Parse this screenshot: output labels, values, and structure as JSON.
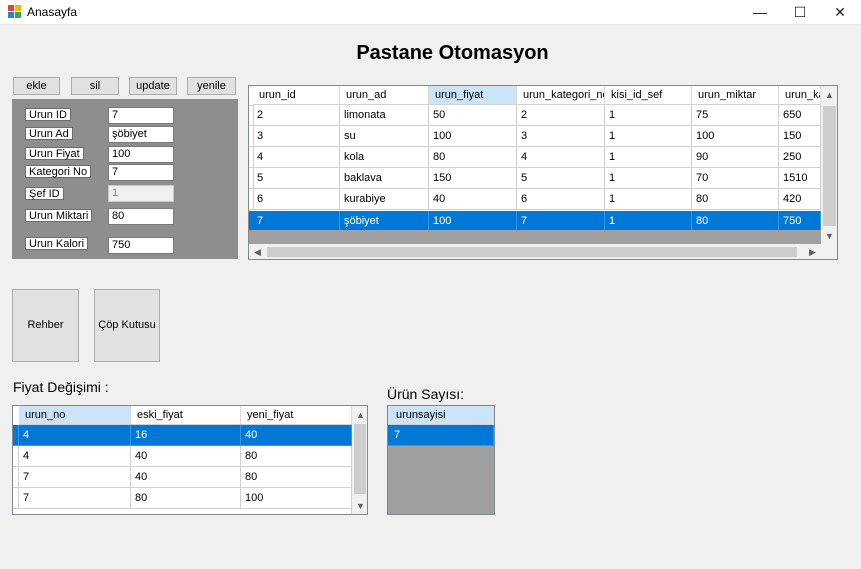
{
  "window": {
    "title": "Anasayfa",
    "minimize": "—",
    "maximize": "☐",
    "close": "✕"
  },
  "main_title": "Pastane Otomasyon",
  "toolbar": {
    "ekle": "ekle",
    "sil": "sil",
    "update": "update",
    "yenile": "yenile"
  },
  "form": {
    "urun_id_label": "Urun ID",
    "urun_id_value": "7",
    "urun_ad_label": "Urun Ad",
    "urun_ad_value": "şöbiyet",
    "urun_fiyat_label": "Urun Fiyat",
    "urun_fiyat_value": "100",
    "kategori_no_label": "Kategori No",
    "kategori_no_value": "7",
    "sef_id_label": "Şef ID",
    "sef_id_value": "1",
    "urun_miktari_label": "Urun Miktari",
    "urun_miktari_value": "80",
    "urun_kalori_label": "Urun Kalori",
    "urun_kalori_value": "750"
  },
  "products_grid": {
    "columns": [
      "urun_id",
      "urun_ad",
      "urun_fiyat",
      "urun_kategori_no",
      "kisi_id_sef",
      "urun_miktar",
      "urun_kalo"
    ],
    "rows": [
      [
        "2",
        "limonata",
        "50",
        "2",
        "1",
        "75",
        "650"
      ],
      [
        "3",
        "su",
        "100",
        "3",
        "1",
        "100",
        "150"
      ],
      [
        "4",
        "kola",
        "80",
        "4",
        "1",
        "90",
        "250"
      ],
      [
        "5",
        "baklava",
        "150",
        "5",
        "1",
        "70",
        "1510"
      ],
      [
        "6",
        "kurabiye",
        "40",
        "6",
        "1",
        "80",
        "420"
      ],
      [
        "7",
        "şöbiyet",
        "100",
        "7",
        "1",
        "80",
        "750"
      ]
    ]
  },
  "buttons": {
    "rehber": "Rehber",
    "cop_kutusu": "Çöp Kutusu"
  },
  "fiyat_label": "Fiyat Değişimi :",
  "price_grid": {
    "columns": [
      "urun_no",
      "eski_fiyat",
      "yeni_fiyat"
    ],
    "rows": [
      [
        "4",
        "16",
        "40"
      ],
      [
        "4",
        "40",
        "80"
      ],
      [
        "7",
        "40",
        "80"
      ],
      [
        "7",
        "80",
        "100"
      ]
    ]
  },
  "urun_sayisi_label": "Ürün Sayısı:",
  "count_grid": {
    "column": "urunsayisi",
    "value": "7"
  }
}
